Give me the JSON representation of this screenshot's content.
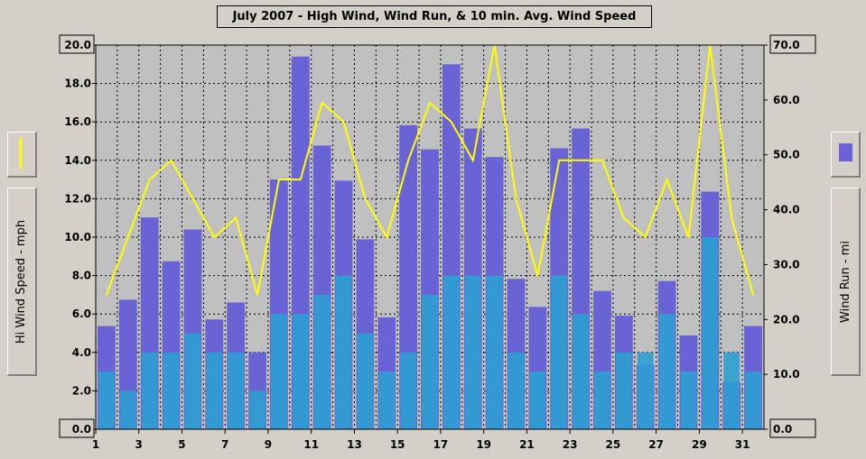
{
  "title": "July 2007 - High Wind, Wind Run, & 10 min. Avg. Wind Speed",
  "left_axis_label": "Hi Wind Speed - mph",
  "right_axis_label": "Wind Run - mi",
  "colors": {
    "background": "#d4d0c8",
    "plot_bg": "#c0c0c0",
    "wind_run_bar": "#6a63d6",
    "avg_speed": "#2e9fd2",
    "hi_wind_line": "#ffff00",
    "grid": "#000000"
  },
  "chart_data": {
    "type": "bar",
    "x_ticks": [
      "1",
      "3",
      "5",
      "7",
      "9",
      "11",
      "13",
      "15",
      "17",
      "19",
      "21",
      "23",
      "25",
      "27",
      "29",
      "31"
    ],
    "y_left_ticks": [
      "0.0",
      "2.0",
      "4.0",
      "6.0",
      "8.0",
      "10.0",
      "12.0",
      "14.0",
      "16.0",
      "18.0",
      "20.0"
    ],
    "y_right_ticks": [
      "0.0",
      "10.0",
      "20.0",
      "30.0",
      "40.0",
      "50.0",
      "60.0",
      "70.0"
    ],
    "ylim_left": [
      0,
      20
    ],
    "ylim_right": [
      0,
      70
    ],
    "xlim": [
      1,
      32
    ],
    "grid": true,
    "days": [
      1,
      2,
      3,
      4,
      5,
      6,
      7,
      8,
      9,
      10,
      11,
      12,
      13,
      14,
      15,
      16,
      17,
      18,
      19,
      20,
      21,
      22,
      23,
      24,
      25,
      26,
      27,
      28,
      29,
      30,
      31
    ],
    "series": [
      {
        "name": "Wind Run",
        "axis": "right",
        "kind": "bar",
        "values": [
          18.8,
          23.6,
          38.6,
          30.6,
          36.4,
          20.0,
          23.1,
          14.0,
          45.5,
          67.9,
          51.7,
          45.3,
          34.6,
          20.4,
          55.4,
          51.0,
          66.5,
          54.8,
          49.6,
          27.4,
          22.3,
          51.2,
          54.8,
          25.2,
          20.7,
          11.7,
          27.0,
          17.1,
          43.3,
          8.6,
          18.8
        ]
      },
      {
        "name": "Hi Wind Speed",
        "axis": "left",
        "kind": "line",
        "values": [
          7.0,
          10.0,
          13.0,
          14.0,
          12.0,
          10.0,
          11.0,
          7.0,
          13.0,
          13.0,
          17.0,
          16.0,
          12.0,
          10.0,
          14.0,
          17.0,
          16.0,
          14.0,
          20.0,
          12.0,
          8.0,
          14.0,
          14.0,
          14.0,
          11.0,
          10.0,
          13.0,
          10.0,
          20.0,
          11.0,
          7.0
        ]
      },
      {
        "name": "10 min. Avg. Wind Speed",
        "axis": "left",
        "kind": "bar",
        "values": [
          3,
          2,
          4,
          4,
          5,
          4,
          4,
          2,
          6,
          6,
          7,
          8,
          5,
          3,
          4,
          7,
          8,
          8,
          8,
          4,
          3,
          8,
          6,
          3,
          4,
          4,
          6,
          3,
          10,
          4,
          3
        ]
      }
    ]
  }
}
